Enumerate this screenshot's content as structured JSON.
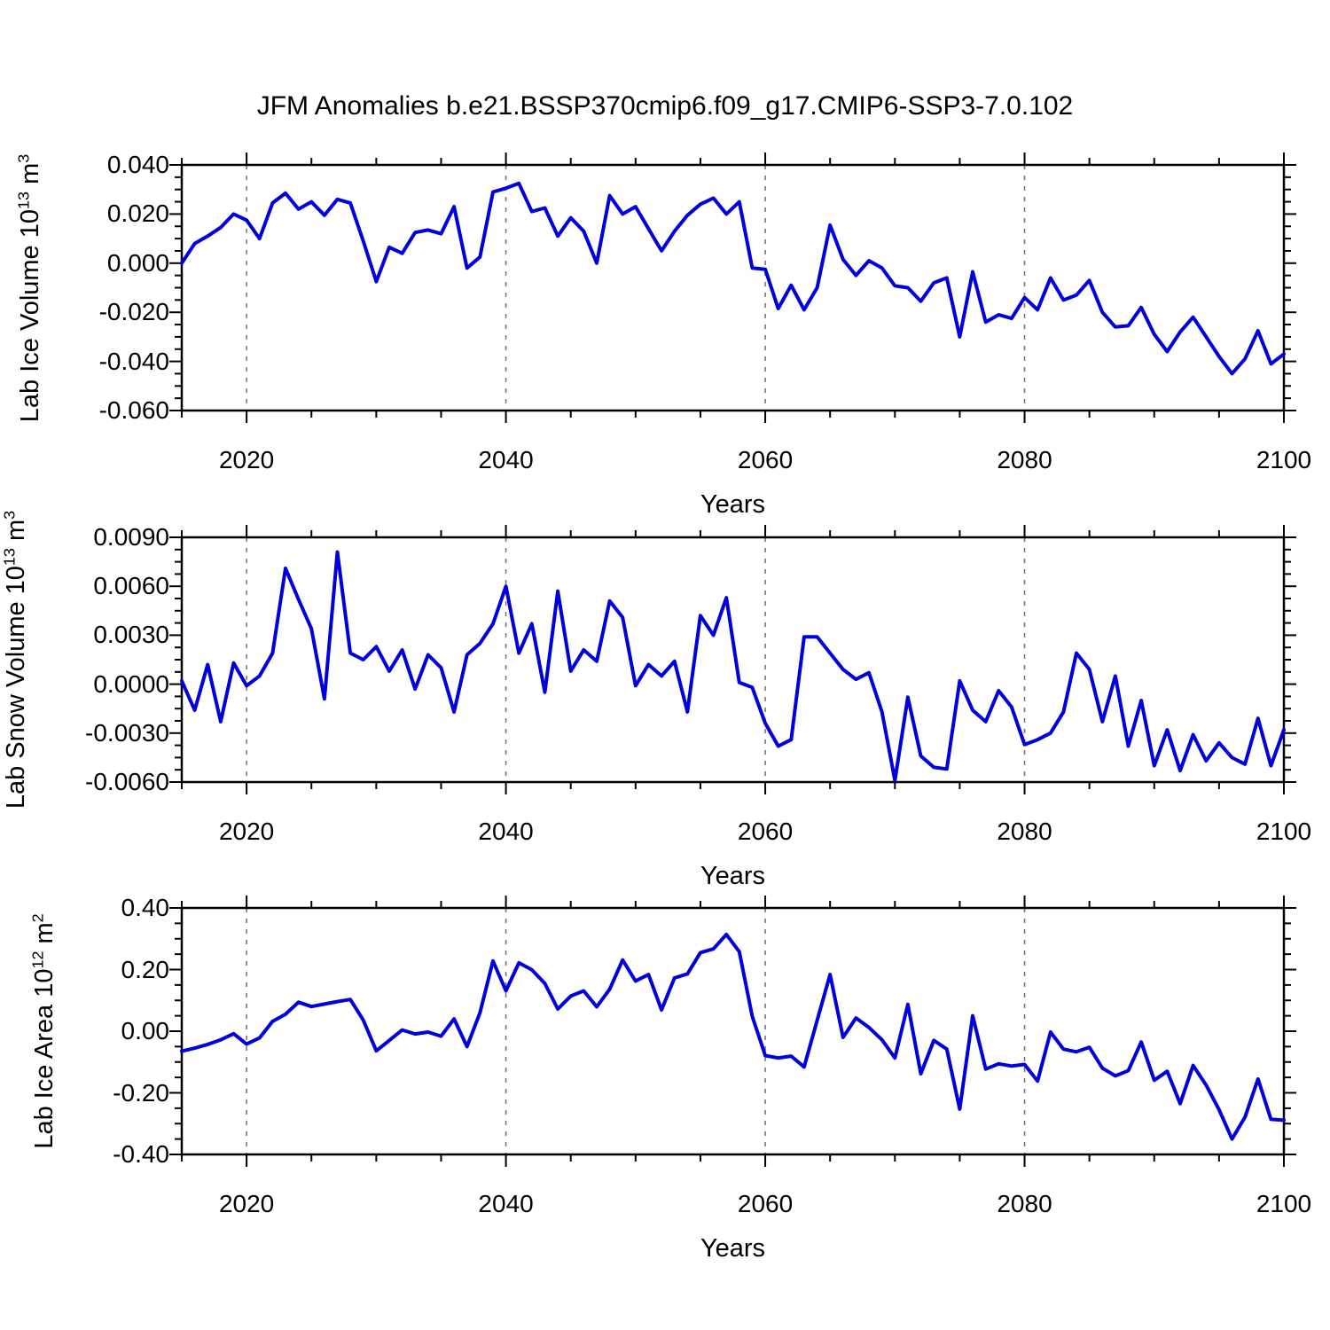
{
  "title": "JFM Anomalies b.e21.BSSP370cmip6.f09_g17.CMIP6-SSP3-7.0.102",
  "colors": {
    "line": "#0000dd",
    "axis": "#000000",
    "grid": "#777777"
  },
  "years": [
    2015,
    2016,
    2017,
    2018,
    2019,
    2020,
    2021,
    2022,
    2023,
    2024,
    2025,
    2026,
    2027,
    2028,
    2029,
    2030,
    2031,
    2032,
    2033,
    2034,
    2035,
    2036,
    2037,
    2038,
    2039,
    2040,
    2041,
    2042,
    2043,
    2044,
    2045,
    2046,
    2047,
    2048,
    2049,
    2050,
    2051,
    2052,
    2053,
    2054,
    2055,
    2056,
    2057,
    2058,
    2059,
    2060,
    2061,
    2062,
    2063,
    2064,
    2065,
    2066,
    2067,
    2068,
    2069,
    2070,
    2071,
    2072,
    2073,
    2074,
    2075,
    2076,
    2077,
    2078,
    2079,
    2080,
    2081,
    2082,
    2083,
    2084,
    2085,
    2086,
    2087,
    2088,
    2089,
    2090,
    2091,
    2092,
    2093,
    2094,
    2095,
    2096,
    2097,
    2098,
    2099,
    2100
  ],
  "chart_data": [
    {
      "type": "line",
      "name": "ice-volume",
      "ylabel": "Lab Ice Volume 10^{13} m^{3}",
      "xlabel": "Years",
      "xlim": [
        2015,
        2100
      ],
      "ylim": [
        -0.06,
        0.04
      ],
      "xticks": [
        2020,
        2040,
        2060,
        2080,
        2100
      ],
      "xtick_minor_step": 5,
      "grid_x": [
        2020,
        2040,
        2060,
        2080
      ],
      "ytick_values": [
        0.04,
        0.02,
        0.0,
        -0.02,
        -0.04,
        -0.06
      ],
      "ytick_labels": [
        "0.040",
        "0.020",
        "0.000",
        "-0.020",
        "-0.040",
        "-0.060"
      ],
      "ytick_minor_step": 0.005,
      "values": [
        0.0,
        0.008,
        0.011,
        0.0145,
        0.02,
        0.0175,
        0.01,
        0.0245,
        0.0285,
        0.022,
        0.025,
        0.0195,
        0.026,
        0.0245,
        0.009,
        -0.0075,
        0.0065,
        0.004,
        0.0125,
        0.0135,
        0.012,
        0.023,
        -0.002,
        0.0025,
        0.029,
        0.0305,
        0.0325,
        0.021,
        0.0225,
        0.011,
        0.0185,
        0.013,
        0.0,
        0.0275,
        0.02,
        0.023,
        0.014,
        0.005,
        0.013,
        0.0195,
        0.024,
        0.0265,
        0.02,
        0.025,
        -0.002,
        -0.0025,
        -0.0185,
        -0.009,
        -0.019,
        -0.01,
        0.0155,
        0.0015,
        -0.005,
        0.001,
        -0.002,
        -0.0092,
        -0.01,
        -0.0155,
        -0.008,
        -0.006,
        -0.03,
        -0.0035,
        -0.024,
        -0.021,
        -0.0225,
        -0.014,
        -0.019,
        -0.006,
        -0.015,
        -0.013,
        -0.007,
        -0.02,
        -0.026,
        -0.0255,
        -0.018,
        -0.029,
        -0.036,
        -0.028,
        -0.022,
        -0.03,
        -0.038,
        -0.045,
        -0.039,
        -0.0275,
        -0.041,
        -0.037
      ]
    },
    {
      "type": "line",
      "name": "snow-volume",
      "ylabel": "Lab Snow Volume 10^{13} m^{3}",
      "xlabel": "Years",
      "xlim": [
        2015,
        2100
      ],
      "ylim": [
        -0.006,
        0.009
      ],
      "xticks": [
        2020,
        2040,
        2060,
        2080,
        2100
      ],
      "xtick_minor_step": 5,
      "grid_x": [
        2020,
        2040,
        2060,
        2080
      ],
      "ytick_values": [
        0.009,
        0.006,
        0.003,
        0.0,
        -0.003,
        -0.006
      ],
      "ytick_labels": [
        "0.0090",
        "0.0060",
        "0.0030",
        "0.0000",
        "-0.0030",
        "-0.0060"
      ],
      "ytick_minor_step": 0.00075,
      "values": [
        0.0002,
        -0.0016,
        0.0012,
        -0.0023,
        0.0013,
        -0.0001,
        0.0005,
        0.0019,
        0.0071,
        0.0052,
        0.0034,
        -0.0009,
        0.0081,
        0.0019,
        0.0015,
        0.0023,
        0.0008,
        0.0021,
        -0.0003,
        0.0018,
        0.001,
        -0.0017,
        0.0018,
        0.0025,
        0.0037,
        0.006,
        0.0019,
        0.0037,
        -0.0005,
        0.0057,
        0.0008,
        0.0021,
        0.0014,
        0.0051,
        0.0041,
        -0.0001,
        0.0012,
        0.0005,
        0.0014,
        -0.0017,
        0.0042,
        0.003,
        0.0053,
        0.0001,
        -0.0002,
        -0.0024,
        -0.0038,
        -0.0034,
        0.0029,
        0.0029,
        0.0019,
        0.0009,
        0.0003,
        0.0007,
        -0.0017,
        -0.0059,
        -0.0008,
        -0.0044,
        -0.0051,
        -0.0052,
        0.0002,
        -0.0016,
        -0.0023,
        -0.0004,
        -0.0014,
        -0.0037,
        -0.0034,
        -0.003,
        -0.0017,
        0.0019,
        0.0009,
        -0.0023,
        0.0005,
        -0.0038,
        -0.001,
        -0.005,
        -0.0028,
        -0.0053,
        -0.0031,
        -0.0047,
        -0.0036,
        -0.0045,
        -0.0049,
        -0.0021,
        -0.005,
        -0.0028
      ]
    },
    {
      "type": "line",
      "name": "ice-area",
      "ylabel": "Lab Ice Area 10^{12} m^{2}",
      "xlabel": "Years",
      "xlim": [
        2015,
        2100
      ],
      "ylim": [
        -0.4,
        0.4
      ],
      "xticks": [
        2020,
        2040,
        2060,
        2080,
        2100
      ],
      "xtick_minor_step": 5,
      "grid_x": [
        2020,
        2040,
        2060,
        2080
      ],
      "ytick_values": [
        0.4,
        0.2,
        0.0,
        -0.2,
        -0.4
      ],
      "ytick_labels": [
        "0.40",
        "0.20",
        "0.00",
        "-0.20",
        "-0.40"
      ],
      "ytick_minor_step": 0.05,
      "values": [
        -0.065,
        -0.055,
        -0.043,
        -0.028,
        -0.008,
        -0.042,
        -0.022,
        0.032,
        0.055,
        0.094,
        0.08,
        0.088,
        0.096,
        0.103,
        0.036,
        -0.064,
        -0.03,
        0.004,
        -0.009,
        -0.003,
        -0.016,
        0.04,
        -0.05,
        0.06,
        0.228,
        0.131,
        0.222,
        0.199,
        0.155,
        0.072,
        0.114,
        0.131,
        0.079,
        0.136,
        0.231,
        0.163,
        0.184,
        0.069,
        0.173,
        0.186,
        0.255,
        0.267,
        0.314,
        0.258,
        0.048,
        -0.079,
        -0.087,
        -0.081,
        -0.116,
        0.035,
        0.184,
        -0.02,
        0.043,
        0.012,
        -0.028,
        -0.087,
        0.087,
        -0.138,
        -0.03,
        -0.058,
        -0.253,
        0.05,
        -0.123,
        -0.106,
        -0.113,
        -0.108,
        -0.162,
        -0.003,
        -0.058,
        -0.067,
        -0.052,
        -0.12,
        -0.145,
        -0.128,
        -0.035,
        -0.159,
        -0.13,
        -0.235,
        -0.111,
        -0.175,
        -0.255,
        -0.35,
        -0.279,
        -0.155,
        -0.286,
        -0.289
      ]
    }
  ]
}
